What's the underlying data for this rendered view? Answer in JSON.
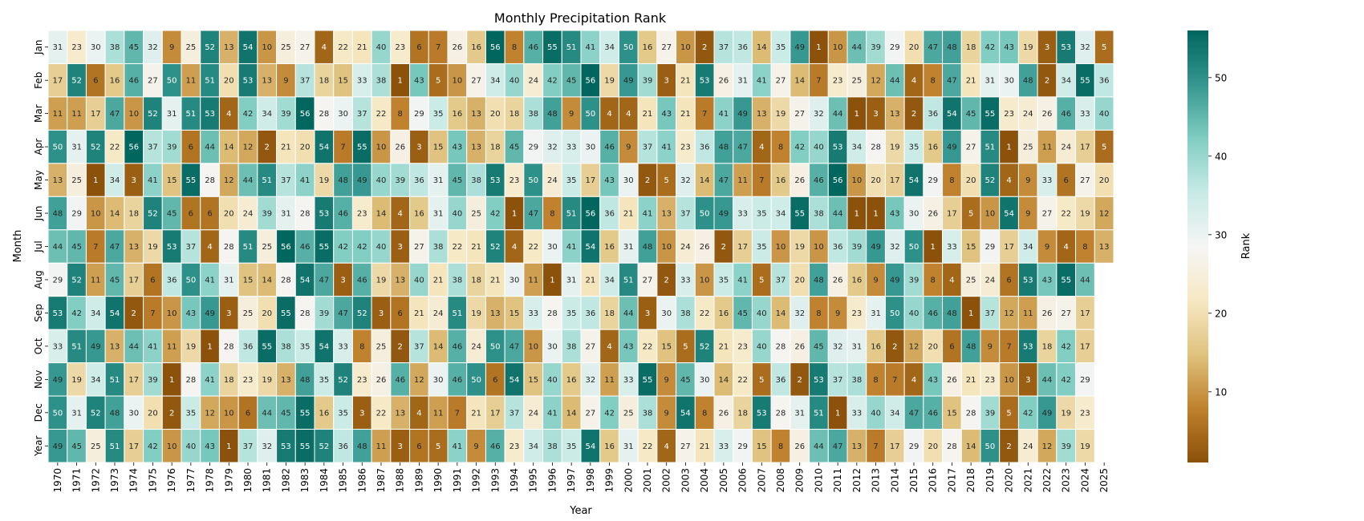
{
  "chart_data": {
    "type": "heatmap",
    "title": "Monthly Precipitation Rank",
    "xlabel": "Year",
    "ylabel": "Month",
    "colorbar_label": "Rank",
    "x": [
      "1970",
      "1971",
      "1972",
      "1973",
      "1974",
      "1975",
      "1976",
      "1977",
      "1978",
      "1979",
      "1980",
      "1981",
      "1982",
      "1983",
      "1984",
      "1985",
      "1986",
      "1987",
      "1988",
      "1989",
      "1990",
      "1991",
      "1992",
      "1993",
      "1994",
      "1995",
      "1996",
      "1997",
      "1998",
      "1999",
      "2000",
      "2001",
      "2002",
      "2003",
      "2004",
      "2005",
      "2006",
      "2007",
      "2008",
      "2009",
      "2010",
      "2011",
      "2012",
      "2013",
      "2014",
      "2015",
      "2016",
      "2017",
      "2018",
      "2019",
      "2020",
      "2021",
      "2022",
      "2023",
      "2024",
      "2025"
    ],
    "y": [
      "Jan",
      "Feb",
      "Mar",
      "Apr",
      "May",
      "Jun",
      "Jul",
      "Aug",
      "Sep",
      "Oct",
      "Nov",
      "Dec",
      "Year"
    ],
    "values": [
      [
        31,
        23,
        30,
        38,
        45,
        32,
        9,
        25,
        52,
        13,
        54,
        10,
        25,
        27,
        4,
        22,
        21,
        40,
        23,
        6,
        7,
        26,
        16,
        56,
        8,
        46,
        55,
        51,
        41,
        34,
        50,
        16,
        27,
        10,
        2,
        37,
        36,
        14,
        35,
        49,
        1,
        10,
        44,
        39,
        29,
        20,
        47,
        48,
        18,
        42,
        43,
        19,
        3,
        53,
        32,
        5
      ],
      [
        17,
        52,
        6,
        16,
        46,
        27,
        50,
        11,
        51,
        20,
        53,
        13,
        9,
        37,
        18,
        15,
        33,
        38,
        1,
        43,
        5,
        10,
        27,
        34,
        40,
        24,
        42,
        45,
        56,
        19,
        49,
        39,
        3,
        21,
        53,
        26,
        31,
        41,
        27,
        14,
        7,
        23,
        25,
        12,
        44,
        4,
        8,
        47,
        21,
        31,
        30,
        48,
        2,
        34,
        55,
        36
      ],
      [
        11,
        11,
        17,
        47,
        10,
        52,
        31,
        51,
        53,
        4,
        42,
        34,
        39,
        56,
        28,
        30,
        37,
        22,
        8,
        29,
        35,
        16,
        13,
        20,
        18,
        38,
        48,
        9,
        50,
        4,
        4,
        21,
        43,
        21,
        7,
        41,
        49,
        13,
        19,
        27,
        32,
        44,
        1,
        3,
        13,
        2,
        36,
        54,
        45,
        55,
        23,
        24,
        26,
        46,
        33,
        40
      ],
      [
        50,
        31,
        52,
        22,
        56,
        37,
        39,
        6,
        44,
        14,
        12,
        2,
        21,
        20,
        54,
        7,
        55,
        10,
        26,
        3,
        15,
        43,
        13,
        18,
        45,
        29,
        32,
        33,
        30,
        46,
        9,
        37,
        41,
        23,
        36,
        48,
        47,
        4,
        8,
        42,
        40,
        53,
        34,
        28,
        19,
        35,
        16,
        49,
        27,
        51,
        1,
        25,
        11,
        24,
        17,
        5
      ],
      [
        13,
        25,
        1,
        34,
        3,
        41,
        15,
        55,
        28,
        12,
        44,
        51,
        37,
        41,
        19,
        48,
        49,
        40,
        39,
        36,
        31,
        45,
        38,
        53,
        23,
        50,
        24,
        35,
        17,
        43,
        30,
        2,
        5,
        32,
        14,
        47,
        11,
        7,
        16,
        26,
        46,
        56,
        10,
        20,
        17,
        54,
        29,
        8,
        20,
        52,
        4,
        9,
        33,
        6,
        27,
        20
      ],
      [
        48,
        29,
        10,
        14,
        18,
        52,
        45,
        6,
        6,
        20,
        24,
        39,
        31,
        28,
        53,
        46,
        23,
        14,
        4,
        16,
        31,
        40,
        25,
        42,
        1,
        47,
        8,
        51,
        56,
        36,
        21,
        41,
        13,
        37,
        50,
        49,
        33,
        35,
        34,
        55,
        38,
        44,
        1,
        1,
        43,
        30,
        26,
        17,
        5,
        10,
        54,
        9,
        27,
        22,
        19,
        12
      ],
      [
        44,
        45,
        7,
        47,
        13,
        19,
        53,
        37,
        4,
        28,
        51,
        25,
        56,
        46,
        55,
        42,
        42,
        40,
        3,
        27,
        38,
        22,
        21,
        52,
        4,
        22,
        30,
        41,
        54,
        16,
        31,
        48,
        10,
        24,
        26,
        2,
        17,
        35,
        10,
        19,
        10,
        36,
        39,
        49,
        32,
        50,
        1,
        33,
        15,
        29,
        17,
        34,
        9,
        4,
        8,
        13
      ],
      [
        29,
        52,
        11,
        45,
        17,
        6,
        36,
        50,
        41,
        31,
        15,
        14,
        28,
        54,
        47,
        3,
        46,
        19,
        13,
        40,
        21,
        38,
        18,
        21,
        30,
        11,
        1,
        31,
        21,
        34,
        51,
        27,
        2,
        33,
        10,
        35,
        41,
        5,
        37,
        20,
        48,
        26,
        16,
        9,
        49,
        39,
        8,
        4,
        25,
        24,
        6,
        53,
        43,
        55,
        44,
        null
      ],
      [
        53,
        42,
        34,
        54,
        2,
        7,
        10,
        43,
        49,
        3,
        25,
        20,
        55,
        28,
        39,
        47,
        52,
        3,
        6,
        21,
        24,
        51,
        19,
        13,
        15,
        33,
        28,
        35,
        36,
        18,
        44,
        3,
        30,
        38,
        22,
        16,
        45,
        40,
        14,
        32,
        8,
        9,
        23,
        31,
        50,
        40,
        46,
        48,
        1,
        37,
        12,
        11,
        26,
        27,
        17,
        null
      ],
      [
        33,
        51,
        49,
        13,
        44,
        41,
        11,
        19,
        1,
        28,
        36,
        55,
        38,
        35,
        54,
        33,
        8,
        25,
        2,
        37,
        14,
        46,
        24,
        50,
        47,
        10,
        30,
        38,
        27,
        4,
        43,
        22,
        15,
        5,
        52,
        21,
        23,
        40,
        28,
        26,
        45,
        32,
        31,
        16,
        2,
        12,
        20,
        6,
        48,
        9,
        7,
        53,
        18,
        42,
        17,
        null
      ],
      [
        49,
        19,
        34,
        51,
        17,
        39,
        1,
        28,
        41,
        18,
        23,
        19,
        13,
        48,
        35,
        52,
        23,
        26,
        46,
        12,
        30,
        46,
        50,
        6,
        54,
        15,
        40,
        16,
        32,
        11,
        33,
        55,
        9,
        45,
        30,
        14,
        22,
        5,
        36,
        2,
        53,
        37,
        38,
        8,
        7,
        4,
        43,
        26,
        21,
        23,
        10,
        3,
        44,
        42,
        29,
        null
      ],
      [
        50,
        31,
        52,
        48,
        30,
        20,
        2,
        35,
        12,
        10,
        6,
        44,
        45,
        55,
        16,
        35,
        3,
        22,
        13,
        4,
        11,
        7,
        21,
        17,
        37,
        24,
        41,
        14,
        27,
        42,
        25,
        38,
        9,
        54,
        8,
        26,
        18,
        53,
        28,
        31,
        51,
        1,
        33,
        40,
        34,
        47,
        46,
        15,
        28,
        39,
        5,
        42,
        49,
        19,
        23,
        null
      ],
      [
        49,
        45,
        25,
        51,
        17,
        42,
        10,
        40,
        43,
        1,
        37,
        32,
        53,
        55,
        52,
        36,
        48,
        11,
        3,
        6,
        5,
        41,
        9,
        46,
        23,
        34,
        38,
        35,
        54,
        16,
        31,
        22,
        4,
        27,
        21,
        33,
        29,
        15,
        8,
        26,
        44,
        47,
        13,
        7,
        17,
        29,
        20,
        28,
        14,
        50,
        2,
        24,
        12,
        39,
        19,
        null
      ]
    ],
    "colorbar_ticks": [
      10,
      20,
      30,
      40,
      50
    ],
    "vmin": 1,
    "vmax": 56,
    "colormap": [
      "#8c510a",
      "#bf812d",
      "#dfc27d",
      "#f6e8c3",
      "#f5f5f5",
      "#c7eae5",
      "#80cdc1",
      "#35978f",
      "#01665e"
    ]
  }
}
